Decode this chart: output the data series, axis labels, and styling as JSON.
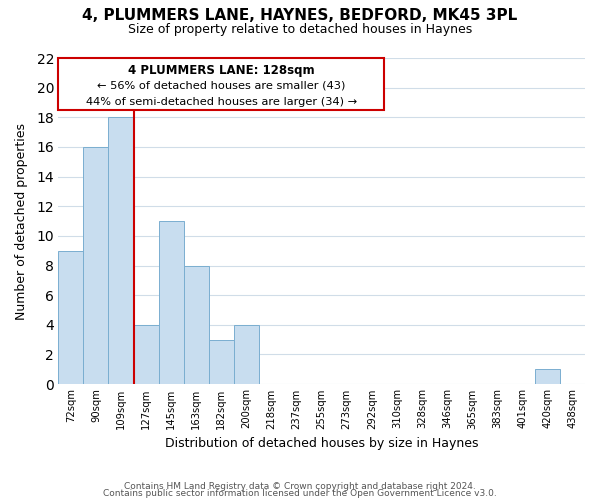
{
  "title": "4, PLUMMERS LANE, HAYNES, BEDFORD, MK45 3PL",
  "subtitle": "Size of property relative to detached houses in Haynes",
  "xlabel": "Distribution of detached houses by size in Haynes",
  "ylabel": "Number of detached properties",
  "bar_labels": [
    "72sqm",
    "90sqm",
    "109sqm",
    "127sqm",
    "145sqm",
    "163sqm",
    "182sqm",
    "200sqm",
    "218sqm",
    "237sqm",
    "255sqm",
    "273sqm",
    "292sqm",
    "310sqm",
    "328sqm",
    "346sqm",
    "365sqm",
    "383sqm",
    "401sqm",
    "420sqm",
    "438sqm"
  ],
  "bar_values": [
    9,
    16,
    18,
    4,
    11,
    8,
    3,
    4,
    0,
    0,
    0,
    0,
    0,
    0,
    0,
    0,
    0,
    0,
    0,
    1,
    0
  ],
  "bar_color": "#c8ddef",
  "bar_edge_color": "#7aaed0",
  "vline_color": "#cc0000",
  "annotation_title": "4 PLUMMERS LANE: 128sqm",
  "annotation_line1": "← 56% of detached houses are smaller (43)",
  "annotation_line2": "44% of semi-detached houses are larger (34) →",
  "annotation_box_color": "#ffffff",
  "annotation_box_edge": "#cc0000",
  "ylim": [
    0,
    22
  ],
  "yticks": [
    0,
    2,
    4,
    6,
    8,
    10,
    12,
    14,
    16,
    18,
    20,
    22
  ],
  "footer1": "Contains HM Land Registry data © Crown copyright and database right 2024.",
  "footer2": "Contains public sector information licensed under the Open Government Licence v3.0.",
  "bg_color": "#ffffff",
  "grid_color": "#d0dde8"
}
